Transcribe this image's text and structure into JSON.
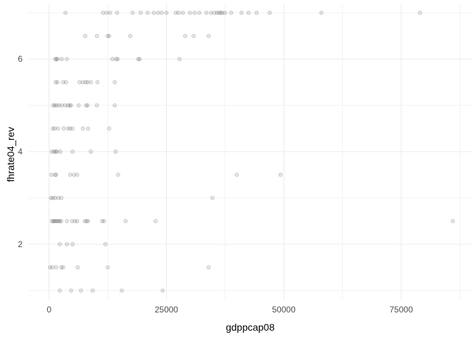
{
  "chart_data": {
    "type": "scatter",
    "xlabel": "gdppcap08",
    "ylabel": "fhrate04_rev",
    "x_ticks": [
      0,
      25000,
      50000,
      75000
    ],
    "x_tick_labels": [
      "0",
      "25000",
      "50000",
      "75000"
    ],
    "y_ticks": [
      2,
      4,
      6
    ],
    "y_tick_labels": [
      "2",
      "4",
      "6"
    ],
    "xlim": [
      -4300,
      90000
    ],
    "ylim": [
      0.8,
      7.2
    ],
    "grid": true,
    "point_color": "#000000",
    "point_alpha": 0.1,
    "points": [
      [
        3500,
        7
      ],
      [
        11500,
        7
      ],
      [
        12300,
        7
      ],
      [
        13000,
        7
      ],
      [
        14500,
        7
      ],
      [
        17800,
        7
      ],
      [
        19500,
        7
      ],
      [
        21000,
        7
      ],
      [
        22300,
        7
      ],
      [
        23200,
        7
      ],
      [
        24000,
        7
      ],
      [
        25000,
        7
      ],
      [
        27000,
        7
      ],
      [
        27600,
        7
      ],
      [
        28500,
        7
      ],
      [
        30000,
        7
      ],
      [
        31000,
        7
      ],
      [
        32000,
        7
      ],
      [
        33500,
        7
      ],
      [
        34500,
        7
      ],
      [
        35200,
        7
      ],
      [
        35800,
        7
      ],
      [
        36200,
        7
      ],
      [
        36600,
        7
      ],
      [
        36900,
        7
      ],
      [
        37500,
        7
      ],
      [
        38800,
        7
      ],
      [
        41000,
        7
      ],
      [
        42500,
        7
      ],
      [
        44200,
        7
      ],
      [
        47000,
        7
      ],
      [
        58000,
        7
      ],
      [
        79000,
        7
      ],
      [
        7700,
        6.5
      ],
      [
        10200,
        6.5
      ],
      [
        12500,
        6.5
      ],
      [
        12800,
        6.5
      ],
      [
        17300,
        6.5
      ],
      [
        29000,
        6.5
      ],
      [
        30800,
        6.5
      ],
      [
        34000,
        6.5
      ],
      [
        1300,
        6
      ],
      [
        1600,
        6
      ],
      [
        1800,
        6
      ],
      [
        2700,
        6
      ],
      [
        3800,
        6
      ],
      [
        13500,
        6
      ],
      [
        14300,
        6
      ],
      [
        14600,
        6
      ],
      [
        19000,
        6
      ],
      [
        19300,
        6
      ],
      [
        27800,
        6
      ],
      [
        1400,
        5.5
      ],
      [
        1800,
        5.5
      ],
      [
        3000,
        5.5
      ],
      [
        3600,
        5.5
      ],
      [
        6500,
        5.5
      ],
      [
        7200,
        5.5
      ],
      [
        7800,
        5.5
      ],
      [
        8200,
        5.5
      ],
      [
        8900,
        5.5
      ],
      [
        10300,
        5.5
      ],
      [
        14000,
        5.5
      ],
      [
        900,
        5
      ],
      [
        1200,
        5
      ],
      [
        1600,
        5
      ],
      [
        2100,
        5
      ],
      [
        2700,
        5
      ],
      [
        3400,
        5
      ],
      [
        4000,
        5
      ],
      [
        4400,
        5
      ],
      [
        4700,
        5
      ],
      [
        6300,
        5
      ],
      [
        7900,
        5
      ],
      [
        8200,
        5
      ],
      [
        10200,
        5
      ],
      [
        14000,
        5
      ],
      [
        800,
        4.5
      ],
      [
        1200,
        4.5
      ],
      [
        1900,
        4.5
      ],
      [
        3100,
        4.5
      ],
      [
        4000,
        4.5
      ],
      [
        4500,
        4.5
      ],
      [
        5000,
        4.5
      ],
      [
        7200,
        4.5
      ],
      [
        8300,
        4.5
      ],
      [
        12800,
        4.5
      ],
      [
        600,
        4
      ],
      [
        1100,
        4
      ],
      [
        1400,
        4
      ],
      [
        1700,
        4
      ],
      [
        2400,
        4
      ],
      [
        5000,
        4
      ],
      [
        8900,
        4
      ],
      [
        14200,
        4
      ],
      [
        500,
        3.5
      ],
      [
        1300,
        3.5
      ],
      [
        1500,
        3.5
      ],
      [
        4500,
        3.5
      ],
      [
        5300,
        3.5
      ],
      [
        6000,
        3.5
      ],
      [
        14700,
        3.5
      ],
      [
        40000,
        3.5
      ],
      [
        49300,
        3.5
      ],
      [
        400,
        3
      ],
      [
        800,
        3
      ],
      [
        1300,
        3
      ],
      [
        2000,
        3
      ],
      [
        2600,
        3
      ],
      [
        34800,
        3
      ],
      [
        600,
        2.5
      ],
      [
        900,
        2.5
      ],
      [
        1100,
        2.5
      ],
      [
        1400,
        2.5
      ],
      [
        1700,
        2.5
      ],
      [
        2000,
        2.5
      ],
      [
        2300,
        2.5
      ],
      [
        2600,
        2.5
      ],
      [
        3800,
        2.5
      ],
      [
        4900,
        2.5
      ],
      [
        5500,
        2.5
      ],
      [
        6000,
        2.5
      ],
      [
        7600,
        2.5
      ],
      [
        8000,
        2.5
      ],
      [
        8300,
        2.5
      ],
      [
        11300,
        2.5
      ],
      [
        11700,
        2.5
      ],
      [
        16300,
        2.5
      ],
      [
        22700,
        2.5
      ],
      [
        86000,
        2.5
      ],
      [
        2300,
        2
      ],
      [
        3800,
        2
      ],
      [
        5000,
        2
      ],
      [
        12000,
        2
      ],
      [
        200,
        1.5
      ],
      [
        700,
        1.5
      ],
      [
        1500,
        1.5
      ],
      [
        2600,
        1.5
      ],
      [
        3000,
        1.5
      ],
      [
        6100,
        1.5
      ],
      [
        12500,
        1.5
      ],
      [
        34000,
        1.5
      ],
      [
        2300,
        1
      ],
      [
        4700,
        1
      ],
      [
        6800,
        1
      ],
      [
        9300,
        1
      ],
      [
        15500,
        1
      ],
      [
        24200,
        1
      ]
    ]
  }
}
